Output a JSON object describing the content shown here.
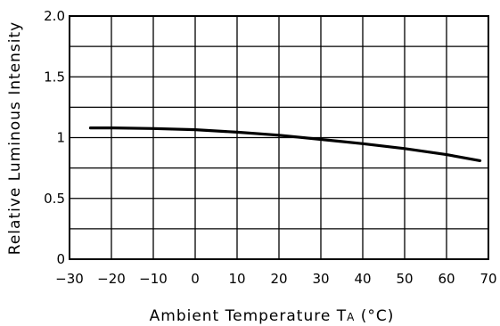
{
  "chart_data": {
    "type": "line",
    "title": "",
    "xlabel": "Ambient Temperature Tₐ (°C)",
    "xlabel_main": "Ambient Temperature T",
    "xlabel_sub": "A",
    "xlabel_unit": " (°C)",
    "ylabel": "Relative Luminous Intensity",
    "xlim": [
      -30,
      70
    ],
    "ylim": [
      0,
      2.0
    ],
    "x_ticks": [
      -30,
      -20,
      -10,
      0,
      10,
      20,
      30,
      40,
      50,
      60,
      70
    ],
    "x_tick_labels": [
      "−30",
      "−20",
      "−10",
      "0",
      "10",
      "20",
      "30",
      "40",
      "50",
      "60",
      "70"
    ],
    "y_ticks": [
      0,
      0.5,
      1.0,
      1.5,
      2.0
    ],
    "y_tick_labels": [
      "0",
      "0.5",
      "1",
      "1.5",
      "2.0"
    ],
    "grid": true,
    "series": [
      {
        "x": [
          -25,
          -20,
          -10,
          0,
          10,
          20,
          30,
          40,
          50,
          60,
          68
        ],
        "y": [
          1.08,
          1.08,
          1.075,
          1.065,
          1.045,
          1.02,
          0.985,
          0.95,
          0.91,
          0.86,
          0.81
        ]
      }
    ]
  }
}
